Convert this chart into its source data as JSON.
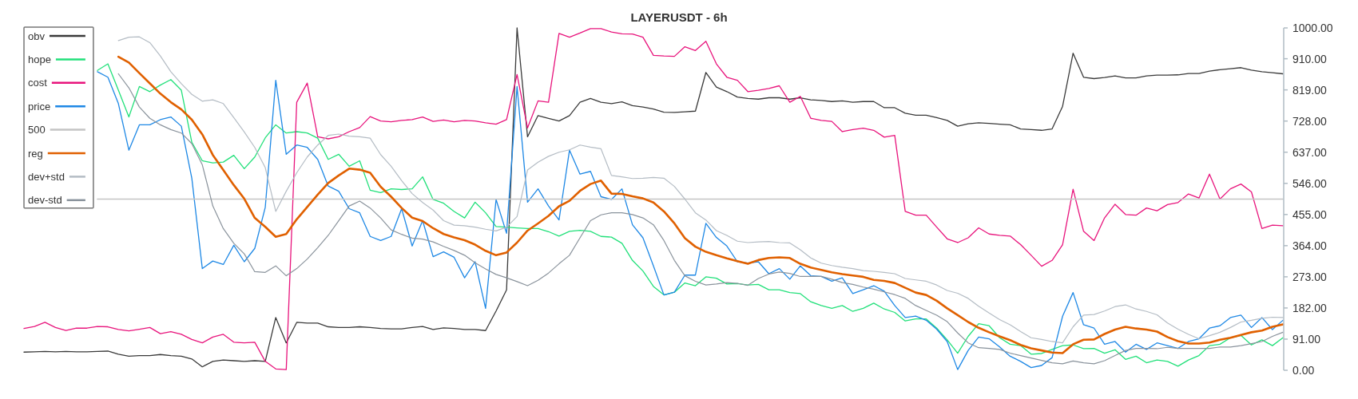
{
  "chart_data": {
    "type": "line",
    "title": "LAYERUSDT - 6h",
    "categories": [
      null,
      null,
      null,
      null,
      null,
      null,
      null,
      null,
      null,
      null,
      null,
      null,
      null,
      null,
      null,
      null,
      null,
      null,
      null,
      null,
      null,
      null,
      null,
      null,
      null,
      null,
      null,
      null,
      null,
      null,
      null,
      null,
      null,
      null,
      null,
      null,
      null,
      null,
      null,
      null,
      null,
      null,
      null,
      null,
      null,
      null,
      null,
      null,
      null,
      null,
      null,
      null,
      null,
      null,
      null,
      null,
      null,
      null,
      null,
      null,
      null,
      null,
      null,
      null,
      null,
      null,
      null,
      null,
      null,
      null,
      null,
      null,
      null,
      null,
      null,
      null,
      null,
      null,
      null,
      null,
      null,
      null,
      null,
      null,
      null,
      null,
      null,
      null,
      null,
      null,
      null,
      null,
      null,
      null,
      null,
      null,
      null,
      null,
      null,
      null,
      null,
      null,
      null,
      null,
      null,
      null,
      null,
      null,
      null,
      null,
      null,
      null,
      null,
      null,
      null,
      null,
      null,
      null,
      null,
      null,
      null
    ],
    "series": [
      {
        "name": "obv",
        "color": "#3a3a3a",
        "values": [
          53,
          54,
          55,
          54,
          55,
          54,
          54,
          55,
          56,
          47,
          41,
          43,
          43,
          46,
          43,
          41,
          33,
          10,
          26,
          30,
          28,
          26,
          28,
          26,
          154,
          80,
          140,
          138,
          138,
          127,
          125,
          125,
          127,
          125,
          122,
          121,
          121,
          125,
          128,
          119,
          124,
          122,
          119,
          119,
          116,
          173,
          235,
          1000,
          682,
          744,
          736,
          728,
          744,
          783,
          794,
          783,
          779,
          784,
          773,
          769,
          763,
          754,
          753,
          755,
          757,
          870,
          827,
          814,
          798,
          794,
          792,
          796,
          796,
          792,
          796,
          790,
          788,
          785,
          787,
          783,
          785,
          785,
          767,
          767,
          751,
          745,
          745,
          738,
          730,
          713,
          720,
          723,
          721,
          719,
          717,
          705,
          703,
          701,
          705,
          771,
          926,
          856,
          852,
          855,
          860,
          854,
          854,
          860,
          862,
          862,
          863,
          867,
          867,
          874,
          878,
          881,
          884,
          877,
          872,
          869,
          866
        ]
      },
      {
        "name": "hope",
        "color": "#22e07a",
        "values": [
          null,
          null,
          null,
          null,
          null,
          null,
          null,
          876,
          895,
          818,
          740,
          829,
          814,
          833,
          849,
          818,
          666,
          612,
          606,
          608,
          628,
          589,
          623,
          679,
          717,
          693,
          697,
          693,
          678,
          616,
          631,
          596,
          612,
          526,
          519,
          530,
          528,
          530,
          565,
          499,
          488,
          464,
          445,
          491,
          460,
          420,
          418,
          416,
          414,
          414,
          405,
          392,
          406,
          409,
          406,
          391,
          389,
          371,
          321,
          290,
          245,
          220,
          228,
          255,
          247,
          273,
          269,
          252,
          253,
          249,
          251,
          235,
          235,
          227,
          224,
          200,
          189,
          181,
          189,
          172,
          181,
          196,
          179,
          169,
          144,
          150,
          150,
          123,
          89,
          50,
          99,
          136,
          130,
          95,
          76,
          72,
          47,
          49,
          61,
          72,
          74,
          63,
          64,
          50,
          60,
          32,
          41,
          22,
          30,
          26,
          12,
          30,
          43,
          72,
          76,
          95,
          102,
          74,
          89,
          72,
          95
        ]
      },
      {
        "name": "cost",
        "color": "#e8147c",
        "values": [
          122,
          128,
          140,
          125,
          116,
          123,
          123,
          128,
          127,
          119,
          115,
          120,
          125,
          107,
          113,
          105,
          90,
          80,
          97,
          105,
          82,
          80,
          82,
          26,
          4,
          2,
          783,
          839,
          682,
          676,
          682,
          697,
          709,
          741,
          728,
          726,
          730,
          732,
          740,
          727,
          731,
          726,
          730,
          728,
          723,
          719,
          732,
          864,
          708,
          787,
          783,
          984,
          973,
          985,
          998,
          998,
          988,
          983,
          982,
          973,
          920,
          918,
          917,
          945,
          934,
          961,
          895,
          856,
          847,
          814,
          818,
          823,
          831,
          783,
          800,
          736,
          730,
          727,
          697,
          703,
          707,
          701,
          681,
          686,
          464,
          453,
          453,
          418,
          384,
          373,
          387,
          416,
          398,
          394,
          392,
          367,
          336,
          304,
          321,
          367,
          529,
          406,
          379,
          445,
          485,
          455,
          453,
          474,
          466,
          484,
          490,
          515,
          503,
          573,
          500,
          530,
          544,
          521,
          414,
          424,
          422
        ]
      },
      {
        "name": "price",
        "color": "#1e88e5",
        "values": [
          null,
          null,
          null,
          null,
          null,
          null,
          null,
          872,
          856,
          779,
          643,
          717,
          717,
          732,
          740,
          713,
          561,
          297,
          319,
          309,
          365,
          317,
          356,
          476,
          847,
          631,
          658,
          651,
          616,
          538,
          523,
          472,
          460,
          391,
          379,
          391,
          472,
          363,
          437,
          332,
          346,
          330,
          270,
          317,
          181,
          499,
          400,
          829,
          491,
          530,
          480,
          439,
          643,
          573,
          581,
          507,
          499,
          530,
          425,
          387,
          305,
          220,
          228,
          278,
          278,
          429,
          388,
          363,
          317,
          313,
          317,
          282,
          297,
          266,
          305,
          276,
          274,
          260,
          270,
          224,
          235,
          247,
          231,
          189,
          154,
          158,
          146,
          120,
          84,
          2,
          58,
          97,
          92,
          68,
          41,
          26,
          8,
          14,
          37,
          158,
          227,
          133,
          123,
          76,
          84,
          53,
          76,
          61,
          80,
          72,
          64,
          84,
          92,
          123,
          130,
          154,
          161,
          125,
          154,
          119,
          146
        ]
      },
      {
        "name": "500",
        "color": "#c4c4c4",
        "values": [
          null,
          null,
          null,
          null,
          null,
          null,
          null,
          500,
          500,
          500,
          500,
          500,
          500,
          500,
          500,
          500,
          500,
          500,
          500,
          500,
          500,
          500,
          500,
          500,
          500,
          500,
          500,
          500,
          500,
          500,
          500,
          500,
          500,
          500,
          500,
          500,
          500,
          500,
          500,
          500,
          500,
          500,
          500,
          500,
          500,
          500,
          500,
          500,
          500,
          500,
          500,
          500,
          500,
          500,
          500,
          500,
          500,
          500,
          500,
          500,
          500,
          500,
          500,
          500,
          500,
          500,
          500,
          500,
          500,
          500,
          500,
          500,
          500,
          500,
          500,
          500,
          500,
          500,
          500,
          500,
          500,
          500,
          500,
          500,
          500,
          500,
          500,
          500,
          500,
          500,
          500,
          500,
          500,
          500,
          500,
          500,
          500,
          500,
          500,
          500,
          500,
          500,
          500,
          500,
          500,
          500,
          500,
          500,
          500,
          500,
          500,
          500,
          500,
          500,
          500,
          500,
          500,
          500,
          500,
          500,
          500
        ]
      },
      {
        "name": "reg",
        "color": "#e06000",
        "values": [
          null,
          null,
          null,
          null,
          null,
          null,
          null,
          null,
          null,
          916,
          899,
          868,
          838,
          808,
          783,
          762,
          732,
          689,
          629,
          585,
          541,
          501,
          445,
          419,
          390,
          398,
          441,
          477,
          513,
          547,
          569,
          589,
          586,
          577,
          536,
          507,
          474,
          446,
          436,
          415,
          398,
          388,
          380,
          367,
          349,
          336,
          344,
          373,
          408,
          429,
          451,
          479,
          495,
          524,
          544,
          554,
          516,
          515,
          508,
          502,
          490,
          464,
          429,
          386,
          361,
          346,
          336,
          327,
          319,
          311,
          322,
          328,
          330,
          328,
          311,
          300,
          293,
          286,
          281,
          277,
          273,
          264,
          261,
          255,
          241,
          227,
          220,
          203,
          181,
          161,
          141,
          124,
          111,
          99,
          88,
          74,
          64,
          58,
          52,
          50,
          76,
          89,
          90,
          106,
          119,
          127,
          122,
          119,
          113,
          97,
          85,
          78,
          78,
          81,
          89,
          95,
          103,
          111,
          116,
          127,
          134
        ]
      },
      {
        "name": "dev+std",
        "color": "#b4bcc4",
        "values": [
          null,
          null,
          null,
          null,
          null,
          null,
          null,
          null,
          null,
          963,
          973,
          974,
          957,
          918,
          872,
          837,
          806,
          786,
          790,
          779,
          738,
          696,
          651,
          592,
          464,
          523,
          577,
          623,
          658,
          686,
          690,
          684,
          682,
          678,
          630,
          596,
          554,
          516,
          490,
          468,
          437,
          424,
          422,
          418,
          412,
          407,
          418,
          449,
          585,
          608,
          625,
          637,
          644,
          658,
          652,
          647,
          569,
          565,
          560,
          561,
          563,
          561,
          537,
          500,
          460,
          439,
          408,
          394,
          377,
          373,
          375,
          376,
          373,
          372,
          352,
          328,
          313,
          306,
          301,
          297,
          291,
          289,
          286,
          282,
          268,
          264,
          260,
          249,
          233,
          225,
          210,
          187,
          167,
          148,
          133,
          113,
          95,
          90,
          84,
          80,
          127,
          161,
          163,
          173,
          186,
          191,
          179,
          172,
          162,
          138,
          120,
          105,
          92,
          101,
          111,
          125,
          141,
          146,
          152,
          155,
          154
        ]
      },
      {
        "name": "dev-std",
        "color": "#8a939c",
        "values": [
          null,
          null,
          null,
          null,
          null,
          null,
          null,
          null,
          null,
          866,
          825,
          769,
          736,
          717,
          703,
          693,
          662,
          600,
          480,
          414,
          371,
          340,
          288,
          286,
          305,
          276,
          297,
          325,
          358,
          394,
          437,
          480,
          494,
          474,
          445,
          410,
          397,
          386,
          383,
          375,
          362,
          350,
          336,
          314,
          296,
          280,
          270,
          259,
          247,
          263,
          284,
          311,
          336,
          387,
          437,
          454,
          460,
          460,
          455,
          445,
          425,
          379,
          321,
          276,
          260,
          249,
          252,
          256,
          254,
          248,
          268,
          281,
          287,
          283,
          274,
          274,
          274,
          266,
          256,
          251,
          243,
          237,
          229,
          221,
          210,
          189,
          175,
          161,
          142,
          109,
          80,
          66,
          64,
          61,
          50,
          43,
          36,
          29,
          22,
          19,
          27,
          22,
          19,
          28,
          43,
          58,
          64,
          64,
          63,
          67,
          64,
          64,
          64,
          64,
          68,
          68,
          72,
          78,
          84,
          99,
          111
        ]
      }
    ],
    "ylim": [
      0,
      1000
    ],
    "yticks": [
      {
        "value": 0,
        "label": "0.00"
      },
      {
        "value": 91,
        "label": "91.00"
      },
      {
        "value": 182,
        "label": "182.00"
      },
      {
        "value": 273,
        "label": "273.00"
      },
      {
        "value": 364,
        "label": "364.00"
      },
      {
        "value": 455,
        "label": "455.00"
      },
      {
        "value": 546,
        "label": "546.00"
      },
      {
        "value": 637,
        "label": "637.00"
      },
      {
        "value": 728,
        "label": "728.00"
      },
      {
        "value": 819,
        "label": "819.00"
      },
      {
        "value": 910,
        "label": "910.00"
      },
      {
        "value": 1000,
        "label": "1000.00"
      }
    ],
    "legend": "top left"
  }
}
